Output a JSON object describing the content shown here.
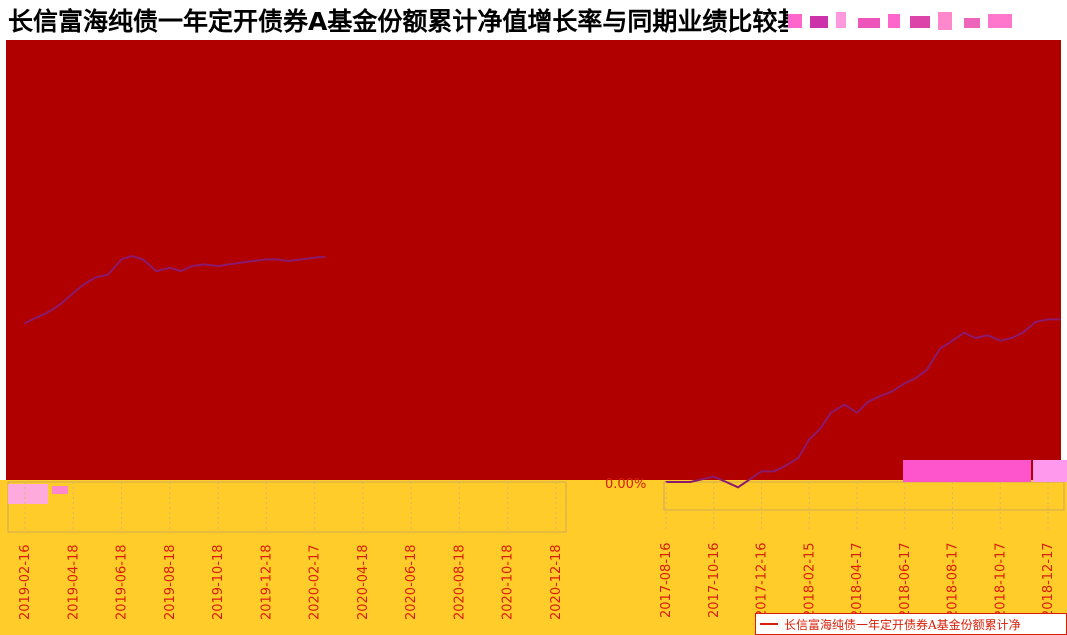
{
  "title": "长信富海纯债一年定开债券A基金份额累计净值增长率与同期业绩比较基",
  "colors": {
    "background_block": "#b00000",
    "axis_band": "#ffcc2a",
    "series": "#8b1a6e",
    "tick_text": "#d81e06",
    "legend_border": "#d81e06"
  },
  "chart_data": [
    {
      "type": "line",
      "title": "",
      "xlabel": "",
      "ylabel": "",
      "x_ticks": [
        "2019-02-16",
        "2019-04-18",
        "2019-06-18",
        "2019-08-18",
        "2019-10-18",
        "2019-12-18",
        "2020-02-17",
        "2020-04-18",
        "2020-06-18",
        "2020-08-18",
        "2020-10-18",
        "2020-12-18"
      ],
      "series": [
        {
          "x": [
            "2019-02-16",
            "2019-03-01",
            "2019-03-15",
            "2019-04-01",
            "2019-04-18",
            "2019-05-01",
            "2019-05-15",
            "2019-06-01",
            "2019-06-18",
            "2019-07-01",
            "2019-07-15",
            "2019-08-01",
            "2019-08-18",
            "2019-09-01",
            "2019-09-15",
            "2019-10-01",
            "2019-10-18",
            "2019-11-01",
            "2019-11-15",
            "2019-12-01",
            "2019-12-18",
            "2020-01-01",
            "2020-01-15",
            "2020-02-01",
            "2020-02-17",
            "2020-03-01"
          ],
          "values": [
            1.0,
            1.3,
            1.6,
            2.1,
            2.8,
            3.3,
            3.7,
            3.9,
            4.8,
            5.0,
            4.8,
            4.1,
            4.3,
            4.1,
            4.4,
            4.5,
            4.4,
            4.5,
            4.6,
            4.7,
            4.8,
            4.8,
            4.7,
            4.8,
            4.9,
            4.95
          ]
        }
      ]
    },
    {
      "type": "line",
      "title": "",
      "xlabel": "",
      "ylabel": "",
      "y_tick_label": "0.00%",
      "x_ticks": [
        "2017-08-16",
        "2017-10-16",
        "2017-12-16",
        "2018-02-15",
        "2018-04-17",
        "2018-06-17",
        "2018-08-17",
        "2018-10-17",
        "2018-12-17"
      ],
      "series": [
        {
          "name": "长信富海纯债一年定开债券A基金份额累计净",
          "x": [
            "2017-08-16",
            "2017-09-01",
            "2017-09-16",
            "2017-10-01",
            "2017-10-16",
            "2017-11-01",
            "2017-11-16",
            "2017-12-01",
            "2017-12-16",
            "2018-01-01",
            "2018-01-15",
            "2018-02-01",
            "2018-02-15",
            "2018-03-01",
            "2018-03-15",
            "2018-04-01",
            "2018-04-17",
            "2018-05-01",
            "2018-05-15",
            "2018-06-01",
            "2018-06-17",
            "2018-07-01",
            "2018-07-15",
            "2018-08-01",
            "2018-08-17",
            "2018-09-01",
            "2018-09-15",
            "2018-10-01",
            "2018-10-17",
            "2018-11-01",
            "2018-11-15",
            "2018-12-01",
            "2018-12-17",
            "2019-01-01"
          ],
          "values": [
            0.0,
            0.0,
            0.0,
            0.1,
            0.2,
            0.0,
            -0.2,
            0.1,
            0.4,
            0.4,
            0.6,
            0.9,
            1.6,
            2.0,
            2.6,
            2.9,
            2.6,
            3.0,
            3.2,
            3.4,
            3.7,
            3.9,
            4.2,
            5.0,
            5.3,
            5.6,
            5.4,
            5.5,
            5.3,
            5.4,
            5.6,
            6.0,
            6.1,
            6.1
          ]
        }
      ]
    }
  ]
}
